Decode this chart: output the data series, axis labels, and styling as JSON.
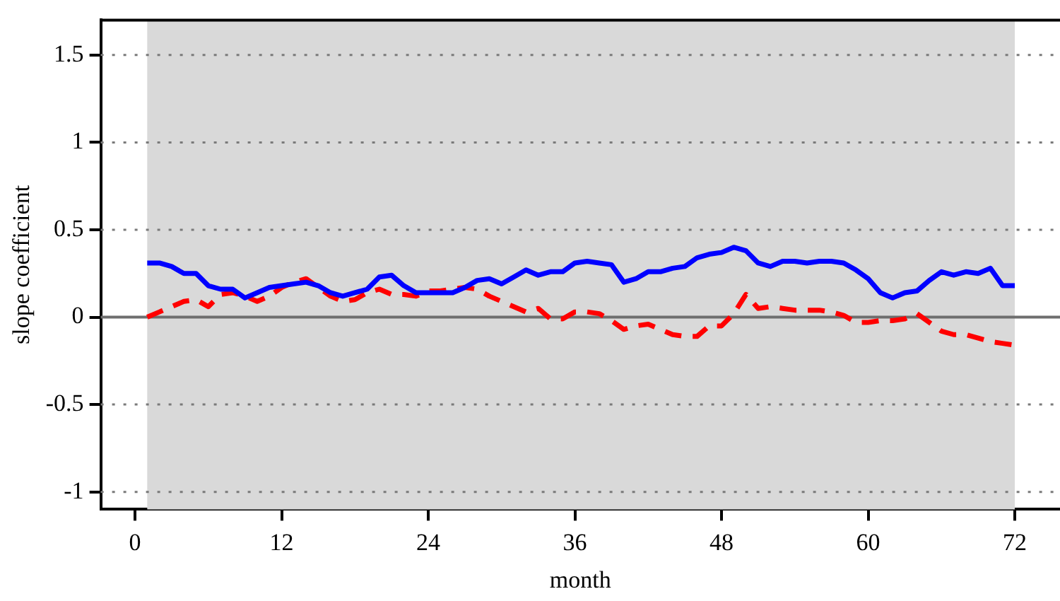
{
  "chart_data": {
    "type": "line",
    "xlabel": "month",
    "ylabel": "slope coefficient",
    "x": [
      1,
      2,
      3,
      4,
      5,
      6,
      7,
      8,
      9,
      10,
      11,
      12,
      13,
      14,
      15,
      16,
      17,
      18,
      19,
      20,
      21,
      22,
      23,
      24,
      25,
      26,
      27,
      28,
      29,
      30,
      31,
      32,
      33,
      34,
      35,
      36,
      37,
      38,
      39,
      40,
      41,
      42,
      43,
      44,
      45,
      46,
      47,
      48,
      49,
      50,
      51,
      52,
      53,
      54,
      55,
      56,
      57,
      58,
      59,
      60,
      61,
      62,
      63,
      64,
      65,
      66,
      67,
      68,
      69,
      70,
      71,
      72
    ],
    "series": [
      {
        "color": "#0000ff",
        "line_style": "solid",
        "values": [
          0.31,
          0.31,
          0.29,
          0.25,
          0.25,
          0.18,
          0.16,
          0.16,
          0.11,
          0.14,
          0.17,
          0.18,
          0.19,
          0.2,
          0.18,
          0.14,
          0.12,
          0.14,
          0.16,
          0.23,
          0.24,
          0.18,
          0.14,
          0.14,
          0.14,
          0.14,
          0.17,
          0.21,
          0.22,
          0.19,
          0.23,
          0.27,
          0.24,
          0.26,
          0.26,
          0.31,
          0.32,
          0.31,
          0.3,
          0.2,
          0.22,
          0.26,
          0.26,
          0.28,
          0.29,
          0.34,
          0.36,
          0.37,
          0.4,
          0.38,
          0.31,
          0.29,
          0.32,
          0.32,
          0.31,
          0.32,
          0.32,
          0.31,
          0.27,
          0.22,
          0.14,
          0.11,
          0.14,
          0.15,
          0.21,
          0.26,
          0.24,
          0.26,
          0.25,
          0.28,
          0.18,
          0.18
        ]
      },
      {
        "color": "#ff0000",
        "line_style": "dashed",
        "values": [
          0.0,
          0.03,
          0.06,
          0.09,
          0.1,
          0.06,
          0.13,
          0.14,
          0.12,
          0.09,
          0.12,
          0.17,
          0.2,
          0.22,
          0.17,
          0.12,
          0.09,
          0.1,
          0.14,
          0.16,
          0.13,
          0.13,
          0.12,
          0.15,
          0.15,
          0.16,
          0.17,
          0.16,
          0.12,
          0.09,
          0.06,
          0.03,
          0.05,
          -0.01,
          -0.01,
          0.03,
          0.03,
          0.02,
          -0.02,
          -0.07,
          -0.05,
          -0.04,
          -0.07,
          -0.1,
          -0.11,
          -0.11,
          -0.05,
          -0.05,
          0.02,
          0.13,
          0.05,
          0.06,
          0.05,
          0.04,
          0.04,
          0.04,
          0.03,
          0.01,
          -0.03,
          -0.03,
          -0.02,
          -0.02,
          -0.01,
          0.02,
          -0.03,
          -0.08,
          -0.1,
          -0.1,
          -0.12,
          -0.14,
          -0.15,
          -0.16
        ]
      }
    ],
    "xlim": [
      -2.8,
      75.7
    ],
    "xticks": [
      0,
      12,
      24,
      36,
      48,
      60,
      72
    ],
    "ylim": [
      -1.1,
      1.7
    ],
    "yticks": [
      -1,
      -0.5,
      0,
      0.5,
      1,
      1.5
    ],
    "grid": "y",
    "marker": "none",
    "ref_lines": [
      {
        "axis": "y",
        "value": 0,
        "color": "#6e6e6e",
        "line_style": "solid"
      }
    ],
    "bands": [
      {
        "axis": "x",
        "from": 1,
        "to": 72,
        "color": "#d9d9d9"
      }
    ],
    "legend": false
  }
}
